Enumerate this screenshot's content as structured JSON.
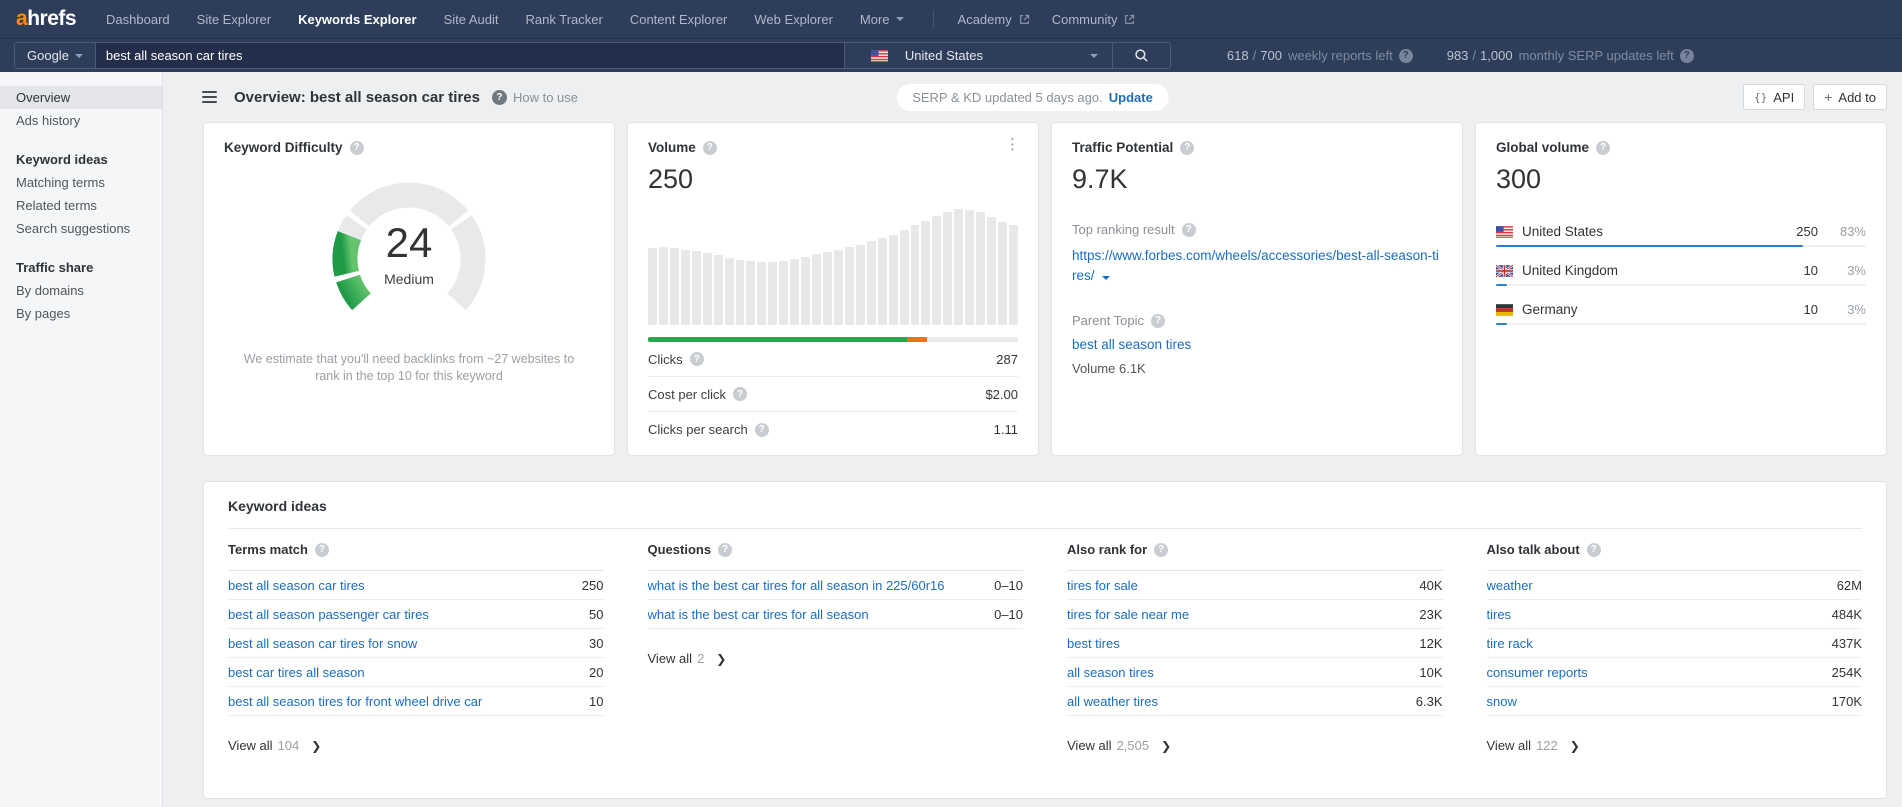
{
  "brand": {
    "logo_accent": "a",
    "logo_rest": "hrefs"
  },
  "topnav": {
    "items": [
      {
        "label": "Dashboard"
      },
      {
        "label": "Site Explorer"
      },
      {
        "label": "Keywords Explorer",
        "active": true
      },
      {
        "label": "Site Audit"
      },
      {
        "label": "Rank Tracker"
      },
      {
        "label": "Content Explorer"
      },
      {
        "label": "Web Explorer"
      },
      {
        "label": "More",
        "caret": true
      }
    ],
    "external": [
      {
        "label": "Academy"
      },
      {
        "label": "Community"
      }
    ]
  },
  "searchbar": {
    "engine": "Google",
    "query": "best all season car tires",
    "country": "United States",
    "country_flag": "us",
    "quota_weekly": {
      "used": "618",
      "total": "700",
      "label": "weekly reports left"
    },
    "quota_serp": {
      "used": "983",
      "total": "1,000",
      "label": "monthly SERP updates left"
    }
  },
  "sidebar": {
    "sections": [
      {
        "items": [
          {
            "label": "Overview",
            "active": true
          },
          {
            "label": "Ads history"
          }
        ]
      },
      {
        "header": "Keyword ideas",
        "items": [
          {
            "label": "Matching terms"
          },
          {
            "label": "Related terms"
          },
          {
            "label": "Search suggestions"
          }
        ]
      },
      {
        "header": "Traffic share",
        "items": [
          {
            "label": "By domains"
          },
          {
            "label": "By pages"
          }
        ]
      }
    ]
  },
  "header": {
    "title": "Overview: best all season car tires",
    "how_to_use": "How to use",
    "update_pill": {
      "text": "SERP & KD updated 5 days ago.",
      "link": "Update"
    },
    "api_button": "API",
    "add_to_button": "Add to"
  },
  "cards": {
    "keyword_difficulty": {
      "title": "Keyword Difficulty",
      "value": "24",
      "label": "Medium",
      "footnote": "We estimate that you'll need backlinks from ~27 websites to rank in the top 10 for this keyword"
    },
    "volume": {
      "title": "Volume",
      "value": "250",
      "metrics": [
        {
          "label": "Clicks",
          "value": "287"
        },
        {
          "label": "Cost per click",
          "value": "$2.00"
        },
        {
          "label": "Clicks per search",
          "value": "1.11"
        }
      ]
    },
    "traffic_potential": {
      "title": "Traffic Potential",
      "value": "9.7K",
      "top_ranking_label": "Top ranking result",
      "top_ranking_url": "https://www.forbes.com/wheels/accessories/best-all-season-tires/",
      "parent_topic_label": "Parent Topic",
      "parent_topic": "best all season tires",
      "parent_volume": "Volume 6.1K"
    },
    "global_volume": {
      "title": "Global volume",
      "value": "300",
      "countries": [
        {
          "name": "United States",
          "flag": "us",
          "volume": "250",
          "pct": "83%",
          "bar": 83
        },
        {
          "name": "United Kingdom",
          "flag": "gb",
          "volume": "10",
          "pct": "3%",
          "bar": 3
        },
        {
          "name": "Germany",
          "flag": "de",
          "volume": "10",
          "pct": "3%",
          "bar": 3
        }
      ]
    }
  },
  "keyword_ideas": {
    "title": "Keyword ideas",
    "columns": [
      {
        "header": "Terms match",
        "view_all": "View all",
        "count": "104",
        "rows": [
          {
            "label": "best all season car tires",
            "value": "250"
          },
          {
            "label": "best all season passenger car tires",
            "value": "50"
          },
          {
            "label": "best all season car tires for snow",
            "value": "30"
          },
          {
            "label": "best car tires all season",
            "value": "20"
          },
          {
            "label": "best all season tires for front wheel drive car",
            "value": "10"
          }
        ]
      },
      {
        "header": "Questions",
        "view_all": "View all",
        "count": "2",
        "rows": [
          {
            "label": "what is the best car tires for all season in 225/60r16",
            "value": "0–10"
          },
          {
            "label": "what is the best car tires for all season",
            "value": "0–10"
          }
        ]
      },
      {
        "header": "Also rank for",
        "view_all": "View all",
        "count": "2,505",
        "rows": [
          {
            "label": "tires for sale",
            "value": "40K"
          },
          {
            "label": "tires for sale near me",
            "value": "23K"
          },
          {
            "label": "best tires",
            "value": "12K"
          },
          {
            "label": "all season tires",
            "value": "10K"
          },
          {
            "label": "all weather tires",
            "value": "6.3K"
          }
        ]
      },
      {
        "header": "Also talk about",
        "view_all": "View all",
        "count": "122",
        "rows": [
          {
            "label": "weather",
            "value": "62M"
          },
          {
            "label": "tires",
            "value": "484K"
          },
          {
            "label": "tire rack",
            "value": "437K"
          },
          {
            "label": "consumer reports",
            "value": "254K"
          },
          {
            "label": "snow",
            "value": "170K"
          }
        ]
      }
    ]
  },
  "chart_data": [
    {
      "type": "gauge",
      "title": "Keyword Difficulty",
      "value": 24,
      "max": 100,
      "label": "Medium",
      "segment_boundaries": [
        10,
        30,
        70
      ],
      "fill_color_start": "#1f9a47",
      "fill_color_end": "#63c46d",
      "track_color": "#e8e9ea"
    },
    {
      "type": "bar",
      "title": "Volume monthly trend",
      "values": [
        0.66,
        0.67,
        0.66,
        0.65,
        0.64,
        0.62,
        0.6,
        0.58,
        0.56,
        0.55,
        0.54,
        0.54,
        0.55,
        0.57,
        0.59,
        0.61,
        0.63,
        0.65,
        0.67,
        0.69,
        0.72,
        0.75,
        0.78,
        0.82,
        0.86,
        0.9,
        0.94,
        0.97,
        1.0,
        0.99,
        0.97,
        0.93,
        0.89,
        0.86
      ],
      "bar_color": "#e6e8ea"
    },
    {
      "type": "stacked-bar",
      "title": "Clicks distribution",
      "segments": [
        {
          "name": "organic-clicks",
          "pct": 70,
          "color": "#2da44e"
        },
        {
          "name": "paid-clicks",
          "pct": 5.5,
          "color": "#f0701f"
        },
        {
          "name": "no-clicks",
          "pct": 24.5,
          "color": "#e9ebed"
        }
      ]
    },
    {
      "type": "bar-horizontal",
      "title": "Global volume by country",
      "categories": [
        "United States",
        "United Kingdom",
        "Germany"
      ],
      "values": [
        83,
        3,
        3
      ],
      "unit": "%",
      "bar_color": "#2f7cd0"
    }
  ],
  "colors": {
    "accent_orange": "#ff8a00",
    "link_blue": "#1a6dc0",
    "nav_bg": "#2e3d59",
    "green": "#2da44e",
    "bar_orange": "#f0701f",
    "country_bar_blue": "#2f7cd0"
  }
}
